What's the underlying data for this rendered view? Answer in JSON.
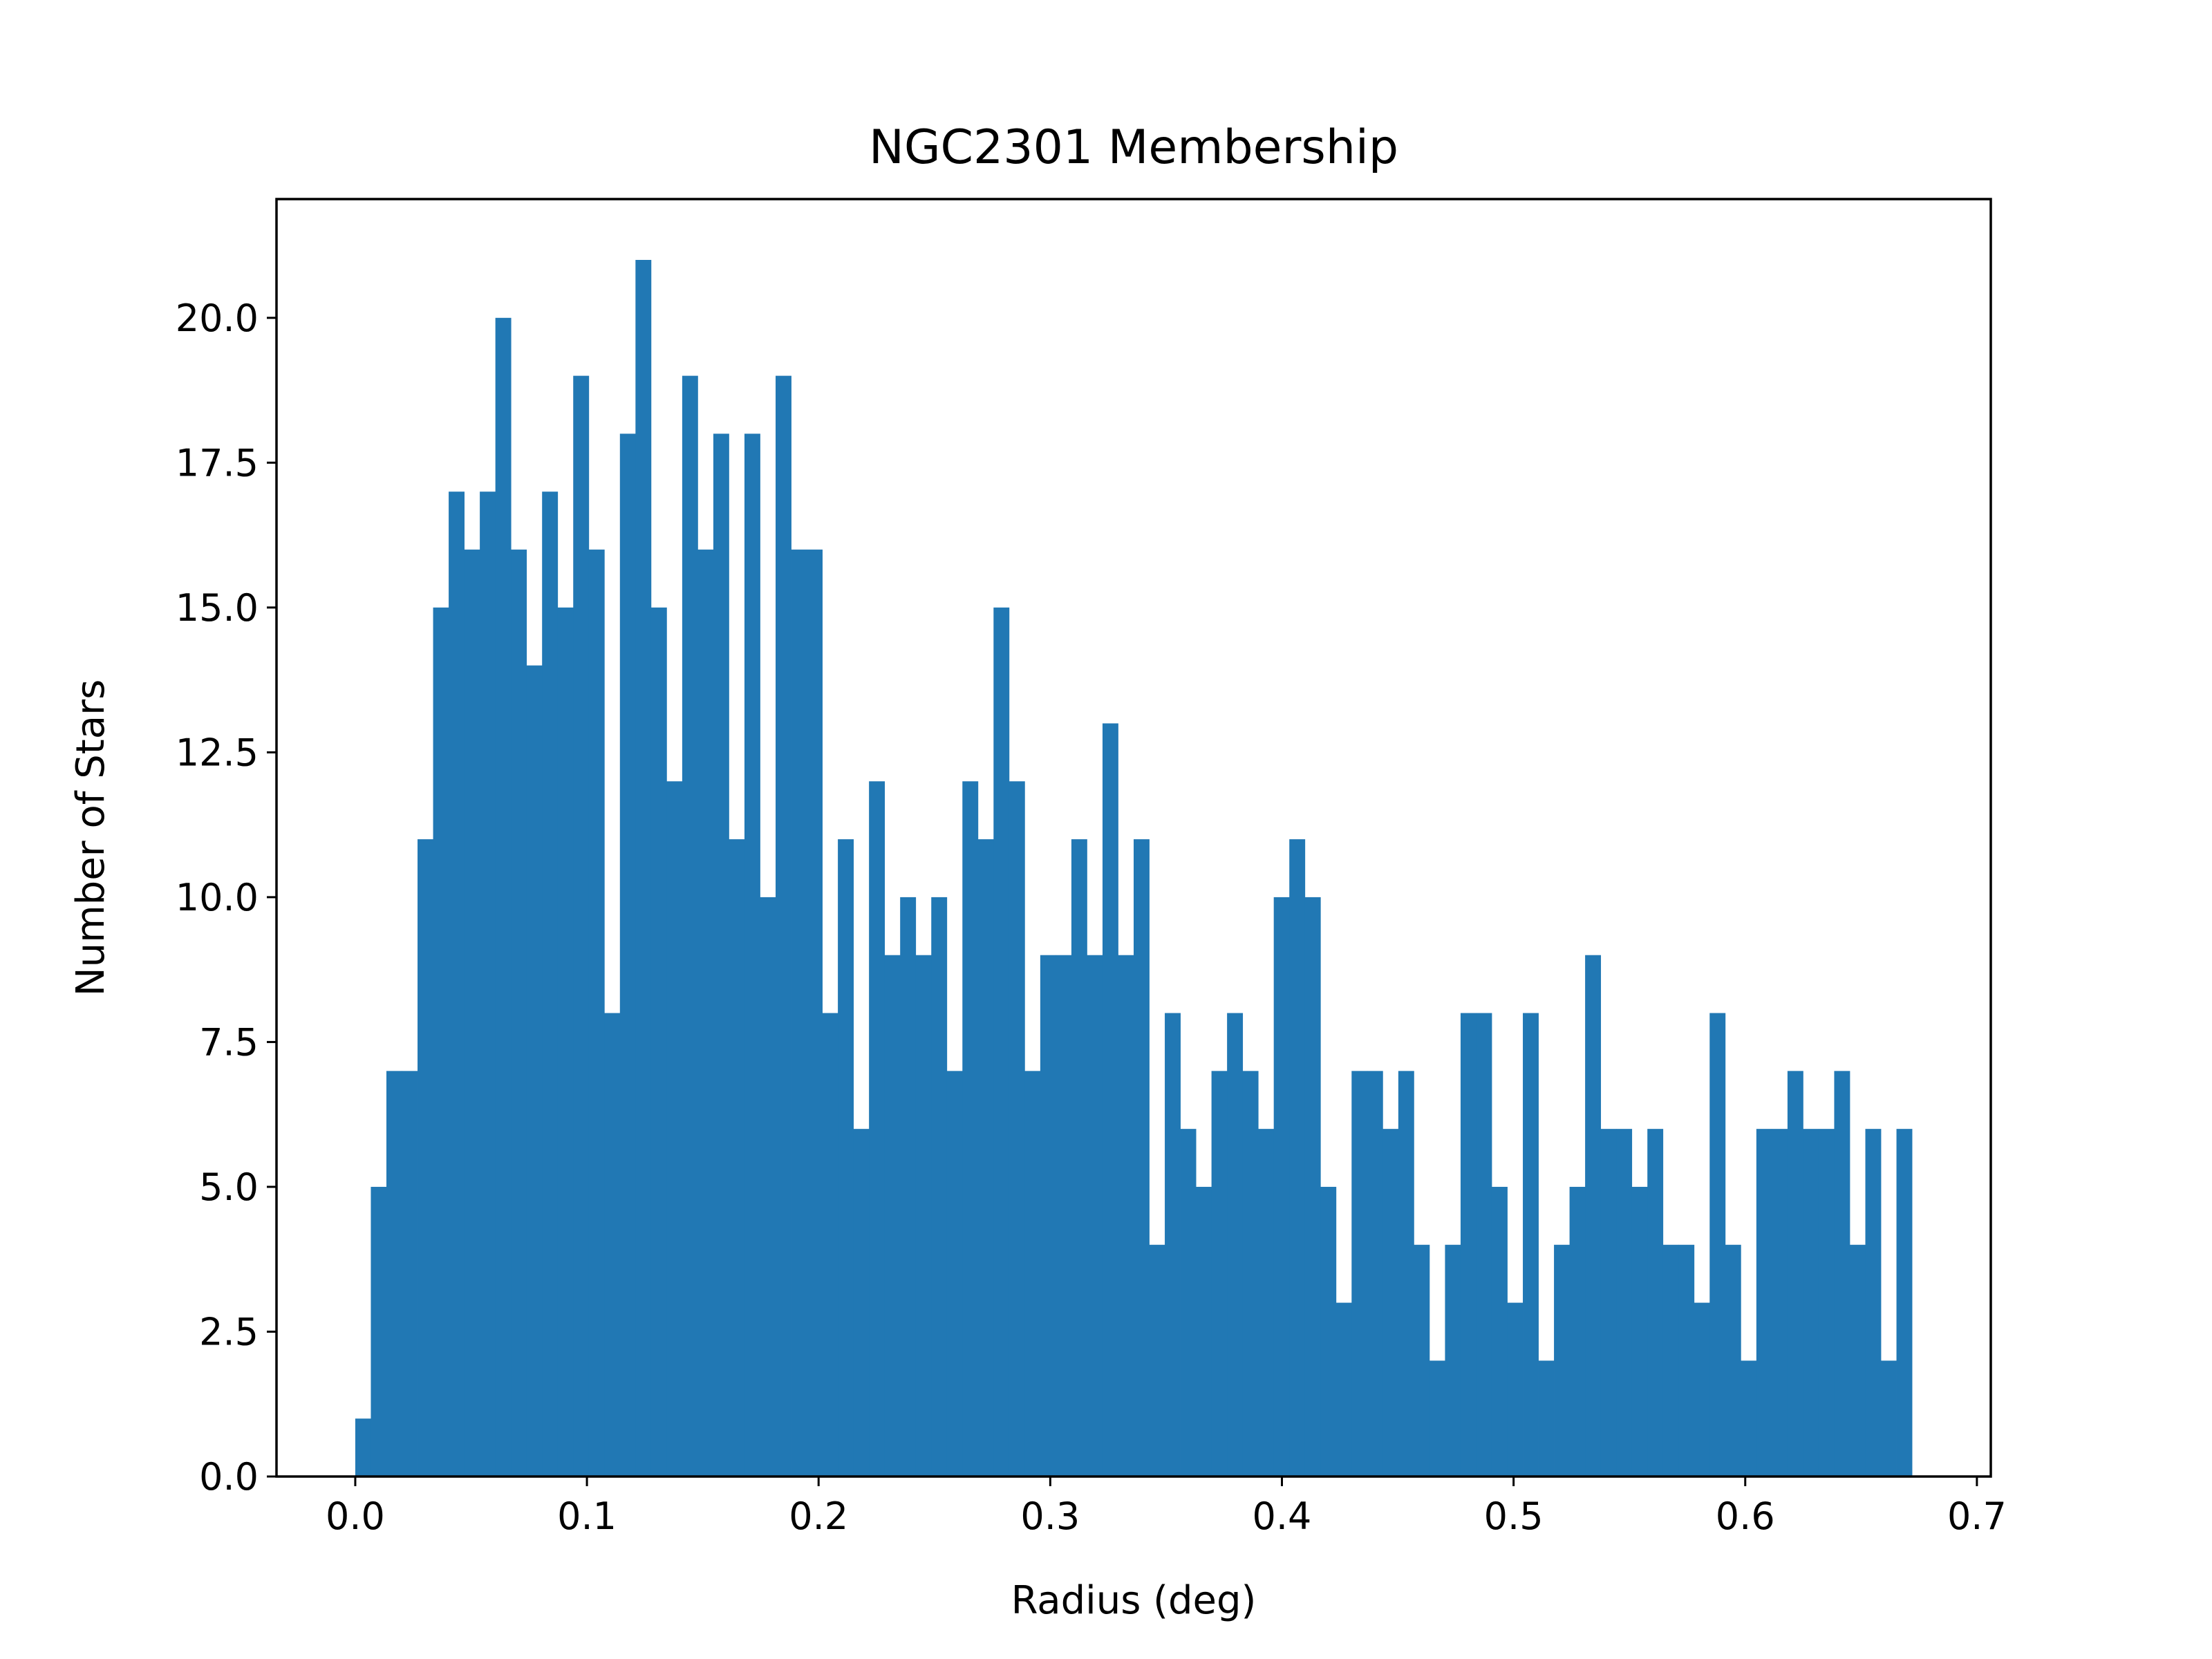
{
  "chart_data": {
    "type": "bar",
    "title": "NGC2301 Membership",
    "xlabel": "Radius (deg)",
    "ylabel": "Number of Stars",
    "xlim": [
      -0.034,
      0.706
    ],
    "ylim": [
      0,
      22.05
    ],
    "xticks": [
      "0.0",
      "0.1",
      "0.2",
      "0.3",
      "0.4",
      "0.5",
      "0.6",
      "0.7"
    ],
    "xtick_values": [
      0.0,
      0.1,
      0.2,
      0.3,
      0.4,
      0.5,
      0.6,
      0.7
    ],
    "yticks": [
      "0.0",
      "2.5",
      "5.0",
      "7.5",
      "10.0",
      "12.5",
      "15.0",
      "17.5",
      "20.0"
    ],
    "ytick_values": [
      0.0,
      2.5,
      5.0,
      7.5,
      10.0,
      12.5,
      15.0,
      17.5,
      20.0
    ],
    "bin_start": 0.0,
    "bin_end": 0.672,
    "counts": [
      1,
      5,
      7,
      7,
      11,
      15,
      17,
      16,
      17,
      20,
      16,
      14,
      17,
      15,
      19,
      16,
      8,
      18,
      21,
      15,
      12,
      19,
      16,
      18,
      11,
      18,
      10,
      19,
      16,
      16,
      8,
      11,
      6,
      12,
      9,
      10,
      9,
      10,
      7,
      12,
      11,
      15,
      12,
      7,
      9,
      9,
      11,
      9,
      13,
      9,
      11,
      4,
      8,
      6,
      5,
      7,
      8,
      7,
      6,
      10,
      11,
      10,
      5,
      3,
      7,
      7,
      6,
      7,
      4,
      2,
      4,
      8,
      8,
      5,
      3,
      8,
      2,
      4,
      5,
      9,
      6,
      6,
      5,
      6,
      4,
      4,
      3,
      8,
      4,
      2,
      6,
      6,
      7,
      6,
      6,
      7,
      4,
      6,
      2,
      6
    ],
    "color": "#2178b4",
    "grid": false,
    "legend": "none"
  }
}
